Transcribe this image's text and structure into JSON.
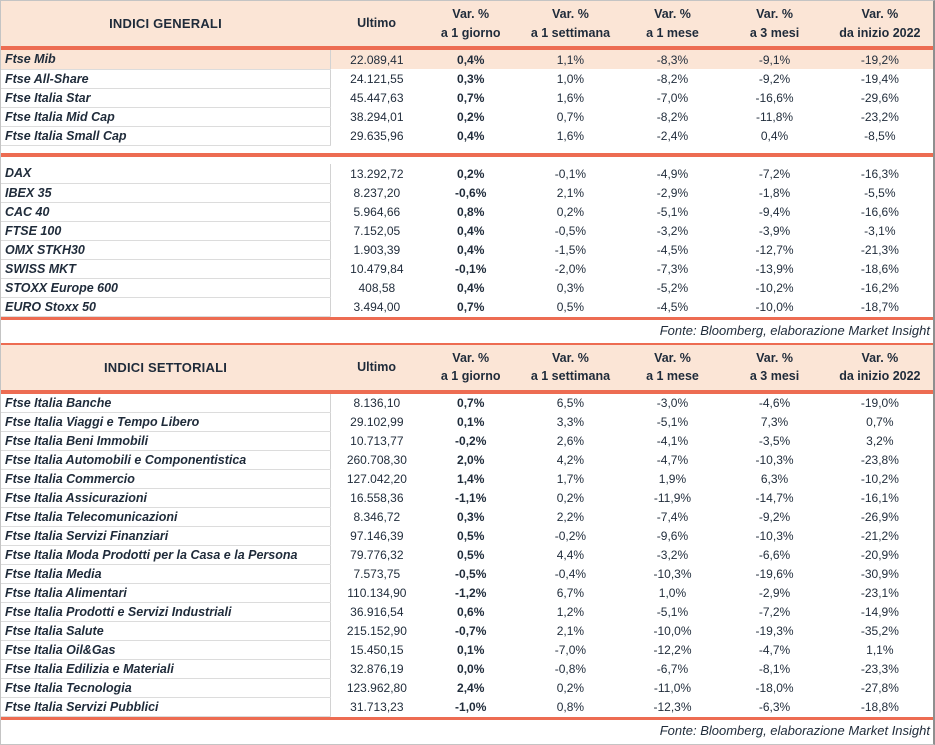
{
  "colors": {
    "accent_line": "#ed6c52",
    "header_bg": "#fbe5d6",
    "highlight_row_bg": "#fbe5d6",
    "text": "#1f2b3a"
  },
  "source_note": "Fonte: Bloomberg, elaborazione Market Insight",
  "chart_data": {
    "type": "table",
    "tables": [
      "INDICI GENERALI",
      "INDICI SETTORIALI"
    ]
  },
  "tables": [
    {
      "title": "INDICI GENERALI",
      "columns": [
        {
          "line1": "Ultimo",
          "line2": ""
        },
        {
          "line1": "Var. %",
          "line2": "a 1 giorno"
        },
        {
          "line1": "Var. %",
          "line2": "a 1 settimana"
        },
        {
          "line1": "Var. %",
          "line2": "a 1 mese"
        },
        {
          "line1": "Var. %",
          "line2": "a 3 mesi"
        },
        {
          "line1": "Var. %",
          "line2": "da inizio 2022"
        }
      ],
      "rows": [
        {
          "label": "Ftse Mib",
          "ultimo": "22.089,41",
          "var_1g": "0,4%",
          "var_1s": "1,1%",
          "var_1m": "-8,3%",
          "var_3m": "-9,1%",
          "var_ytd": "-19,2%",
          "highlight": true
        },
        {
          "label": "Ftse All-Share",
          "ultimo": "24.121,55",
          "var_1g": "0,3%",
          "var_1s": "1,0%",
          "var_1m": "-8,2%",
          "var_3m": "-9,2%",
          "var_ytd": "-19,4%"
        },
        {
          "label": "Ftse Italia Star",
          "ultimo": "45.447,63",
          "var_1g": "0,7%",
          "var_1s": "1,6%",
          "var_1m": "-7,0%",
          "var_3m": "-16,6%",
          "var_ytd": "-29,6%"
        },
        {
          "label": "Ftse Italia Mid Cap",
          "ultimo": "38.294,01",
          "var_1g": "0,2%",
          "var_1s": "0,7%",
          "var_1m": "-8,2%",
          "var_3m": "-11,8%",
          "var_ytd": "-23,2%"
        },
        {
          "label": "Ftse Italia Small Cap",
          "ultimo": "29.635,96",
          "var_1g": "0,4%",
          "var_1s": "1,6%",
          "var_1m": "-2,4%",
          "var_3m": "0,4%",
          "var_ytd": "-8,5%",
          "separator_after": true
        },
        {
          "label": "DAX",
          "ultimo": "13.292,72",
          "var_1g": "0,2%",
          "var_1s": "-0,1%",
          "var_1m": "-4,9%",
          "var_3m": "-7,2%",
          "var_ytd": "-16,3%"
        },
        {
          "label": "IBEX 35",
          "ultimo": "8.237,20",
          "var_1g": "-0,6%",
          "var_1s": "2,1%",
          "var_1m": "-2,9%",
          "var_3m": "-1,8%",
          "var_ytd": "-5,5%"
        },
        {
          "label": "CAC 40",
          "ultimo": "5.964,66",
          "var_1g": "0,8%",
          "var_1s": "0,2%",
          "var_1m": "-5,1%",
          "var_3m": "-9,4%",
          "var_ytd": "-16,6%"
        },
        {
          "label": "FTSE 100",
          "ultimo": "7.152,05",
          "var_1g": "0,4%",
          "var_1s": "-0,5%",
          "var_1m": "-3,2%",
          "var_3m": "-3,9%",
          "var_ytd": "-3,1%"
        },
        {
          "label": "OMX STKH30",
          "ultimo": "1.903,39",
          "var_1g": "0,4%",
          "var_1s": "-1,5%",
          "var_1m": "-4,5%",
          "var_3m": "-12,7%",
          "var_ytd": "-21,3%"
        },
        {
          "label": "SWISS MKT",
          "ultimo": "10.479,84",
          "var_1g": "-0,1%",
          "var_1s": "-2,0%",
          "var_1m": "-7,3%",
          "var_3m": "-13,9%",
          "var_ytd": "-18,6%"
        },
        {
          "label": "STOXX Europe 600",
          "ultimo": "408,58",
          "var_1g": "0,4%",
          "var_1s": "0,3%",
          "var_1m": "-5,2%",
          "var_3m": "-10,2%",
          "var_ytd": "-16,2%"
        },
        {
          "label": "EURO Stoxx 50",
          "ultimo": "3.494,00",
          "var_1g": "0,7%",
          "var_1s": "0,5%",
          "var_1m": "-4,5%",
          "var_3m": "-10,0%",
          "var_ytd": "-18,7%"
        }
      ]
    },
    {
      "title": "INDICI SETTORIALI",
      "columns": [
        {
          "line1": "Ultimo",
          "line2": ""
        },
        {
          "line1": "Var. %",
          "line2": "a 1 giorno"
        },
        {
          "line1": "Var. %",
          "line2": "a 1 settimana"
        },
        {
          "line1": "Var. %",
          "line2": "a 1 mese"
        },
        {
          "line1": "Var. %",
          "line2": "a 3 mesi"
        },
        {
          "line1": "Var. %",
          "line2": "da inizio 2022"
        }
      ],
      "rows": [
        {
          "label": "Ftse Italia Banche",
          "ultimo": "8.136,10",
          "var_1g": "0,7%",
          "var_1s": "6,5%",
          "var_1m": "-3,0%",
          "var_3m": "-4,6%",
          "var_ytd": "-19,0%"
        },
        {
          "label": "Ftse Italia Viaggi e Tempo Libero",
          "ultimo": "29.102,99",
          "var_1g": "0,1%",
          "var_1s": "3,3%",
          "var_1m": "-5,1%",
          "var_3m": "7,3%",
          "var_ytd": "0,7%"
        },
        {
          "label": "Ftse Italia Beni Immobili",
          "ultimo": "10.713,77",
          "var_1g": "-0,2%",
          "var_1s": "2,6%",
          "var_1m": "-4,1%",
          "var_3m": "-3,5%",
          "var_ytd": "3,2%"
        },
        {
          "label": "Ftse Italia Automobili e Componentistica",
          "ultimo": "260.708,30",
          "var_1g": "2,0%",
          "var_1s": "4,2%",
          "var_1m": "-4,7%",
          "var_3m": "-10,3%",
          "var_ytd": "-23,8%"
        },
        {
          "label": "Ftse Italia Commercio",
          "ultimo": "127.042,20",
          "var_1g": "1,4%",
          "var_1s": "1,7%",
          "var_1m": "1,9%",
          "var_3m": "6,3%",
          "var_ytd": "-10,2%"
        },
        {
          "label": "Ftse Italia Assicurazioni",
          "ultimo": "16.558,36",
          "var_1g": "-1,1%",
          "var_1s": "0,2%",
          "var_1m": "-11,9%",
          "var_3m": "-14,7%",
          "var_ytd": "-16,1%"
        },
        {
          "label": "Ftse Italia Telecomunicazioni",
          "ultimo": "8.346,72",
          "var_1g": "0,3%",
          "var_1s": "2,2%",
          "var_1m": "-7,4%",
          "var_3m": "-9,2%",
          "var_ytd": "-26,9%"
        },
        {
          "label": "Ftse Italia Servizi Finanziari",
          "ultimo": "97.146,39",
          "var_1g": "0,5%",
          "var_1s": "-0,2%",
          "var_1m": "-9,6%",
          "var_3m": "-10,3%",
          "var_ytd": "-21,2%"
        },
        {
          "label": "Ftse Italia Moda Prodotti per la Casa e la Persona",
          "ultimo": "79.776,32",
          "var_1g": "0,5%",
          "var_1s": "4,4%",
          "var_1m": "-3,2%",
          "var_3m": "-6,6%",
          "var_ytd": "-20,9%"
        },
        {
          "label": "Ftse Italia Media",
          "ultimo": "7.573,75",
          "var_1g": "-0,5%",
          "var_1s": "-0,4%",
          "var_1m": "-10,3%",
          "var_3m": "-19,6%",
          "var_ytd": "-30,9%"
        },
        {
          "label": "Ftse Italia Alimentari",
          "ultimo": "110.134,90",
          "var_1g": "-1,2%",
          "var_1s": "6,7%",
          "var_1m": "1,0%",
          "var_3m": "-2,9%",
          "var_ytd": "-23,1%"
        },
        {
          "label": "Ftse Italia Prodotti e Servizi Industriali",
          "ultimo": "36.916,54",
          "var_1g": "0,6%",
          "var_1s": "1,2%",
          "var_1m": "-5,1%",
          "var_3m": "-7,2%",
          "var_ytd": "-14,9%"
        },
        {
          "label": "Ftse Italia Salute",
          "ultimo": "215.152,90",
          "var_1g": "-0,7%",
          "var_1s": "2,1%",
          "var_1m": "-10,0%",
          "var_3m": "-19,3%",
          "var_ytd": "-35,2%"
        },
        {
          "label": "Ftse Italia Oil&Gas",
          "ultimo": "15.450,15",
          "var_1g": "0,1%",
          "var_1s": "-7,0%",
          "var_1m": "-12,2%",
          "var_3m": "-4,7%",
          "var_ytd": "1,1%"
        },
        {
          "label": "Ftse Italia Edilizia e Materiali",
          "ultimo": "32.876,19",
          "var_1g": "0,0%",
          "var_1s": "-0,8%",
          "var_1m": "-6,7%",
          "var_3m": "-8,1%",
          "var_ytd": "-23,3%"
        },
        {
          "label": "Ftse Italia Tecnologia",
          "ultimo": "123.962,80",
          "var_1g": "2,4%",
          "var_1s": "0,2%",
          "var_1m": "-11,0%",
          "var_3m": "-18,0%",
          "var_ytd": "-27,8%"
        },
        {
          "label": "Ftse Italia Servizi Pubblici",
          "ultimo": "31.713,23",
          "var_1g": "-1,0%",
          "var_1s": "0,8%",
          "var_1m": "-12,3%",
          "var_3m": "-6,3%",
          "var_ytd": "-18,8%"
        }
      ]
    }
  ]
}
